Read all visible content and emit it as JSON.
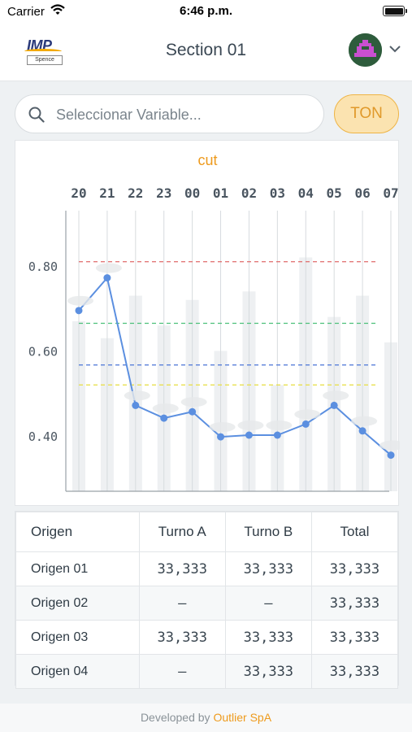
{
  "status": {
    "carrier": "Carrier",
    "time": "6:46 p.m."
  },
  "nav": {
    "title": "Section 01",
    "logo_text": "IMP",
    "logo_sub": "Spence"
  },
  "search": {
    "placeholder": "Seleccionar Variable..."
  },
  "ton_label": "TON",
  "chart_data": {
    "type": "line",
    "title": "cut",
    "categories": [
      "20",
      "21",
      "22",
      "23",
      "00",
      "01",
      "02",
      "03",
      "04",
      "05",
      "06",
      "07"
    ],
    "yticks": [
      "0.80",
      "0.60",
      "0.40"
    ],
    "ylim": [
      0.27,
      0.93
    ],
    "series": [
      {
        "values": [
          0.695,
          0.772,
          0.472,
          0.442,
          0.457,
          0.398,
          0.402,
          0.402,
          0.428,
          0.472,
          0.412,
          0.355
        ],
        "color": "#5b8fe0"
      }
    ],
    "bars": [
      0.67,
      0.63,
      0.73,
      0.66,
      0.72,
      0.6,
      0.74,
      0.52,
      0.82,
      0.68,
      0.73,
      0.62
    ],
    "reference_lines": [
      {
        "value": 0.81,
        "color": "#e06a6a"
      },
      {
        "value": 0.665,
        "color": "#4cc07a"
      },
      {
        "value": 0.567,
        "color": "#4a74d6"
      },
      {
        "value": 0.52,
        "color": "#e8e050"
      }
    ],
    "grid": "vertical"
  },
  "table": {
    "headers": [
      "Origen",
      "Turno A",
      "Turno B",
      "Total"
    ],
    "rows": [
      [
        "Origen 01",
        "33,333",
        "33,333",
        "33,333"
      ],
      [
        "Origen 02",
        "–",
        "–",
        "33,333"
      ],
      [
        "Origen 03",
        "33,333",
        "33,333",
        "33,333"
      ],
      [
        "Origen 04",
        "–",
        "33,333",
        "33,333"
      ]
    ]
  },
  "footer": {
    "prefix": "Developed by ",
    "brand": "Outlier SpA"
  },
  "colors": {
    "accent": "#ee9a1c",
    "line": "#5b8fe0",
    "header_text": "#3a4753"
  }
}
